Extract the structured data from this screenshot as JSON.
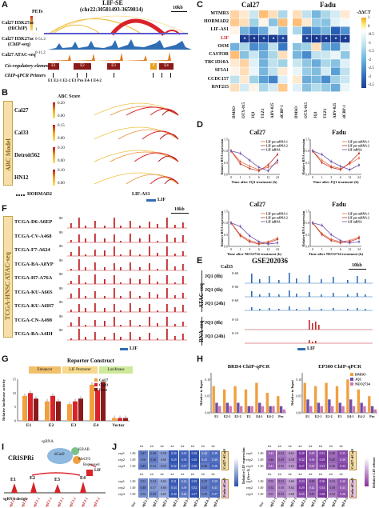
{
  "panels": {
    "A": "A",
    "B": "B",
    "C": "C",
    "D": "D",
    "E": "E",
    "F": "F",
    "G": "G",
    "H": "H",
    "I": "I",
    "J": "J"
  },
  "A": {
    "title": "LIF-SE",
    "coords": "(chr22:30581493-3659814)",
    "scale": "10kb",
    "pets": "PETs",
    "track1": "Cal27 H3K27ac",
    "track1_sub": "(HiChIP)",
    "track1_max": "1",
    "track2": "Cal27 H3K27ac",
    "track2_sub": "(ChIP-seq)",
    "track2_range": "0-51.2",
    "track3": "Cal27 ATAC-seq",
    "track3_range": "0-11.2",
    "cre": "Cis-regulatory elements",
    "primers": "ChIP-qPCR Primers",
    "elements": [
      "E1",
      "E2",
      "E3",
      "P",
      "E4"
    ],
    "primer_labels": "E1  E2-1 E2-2    E3    Pro E4-1 E4-2"
  },
  "B": {
    "side": "ABC Model",
    "score": "ABC Score",
    "rows": [
      {
        "name": "Cal27",
        "hi": "0.20",
        "lo": "0.00"
      },
      {
        "name": "Cal33",
        "hi": "0.15",
        "lo": "0.00"
      },
      {
        "name": "Detroit562",
        "hi": "0.10",
        "lo": "0.00"
      },
      {
        "name": "HN12",
        "hi": "0.10",
        "lo": "0.00"
      }
    ],
    "gene1": "HORMAD2",
    "gene2": "LIF-AS1",
    "gene3": "LIF"
  },
  "C": {
    "title1": "Cal27",
    "title2": "Fadu",
    "legend_title": "-ΔΔCT",
    "legend_ticks": [
      "1",
      "0",
      "-0.5",
      "-1",
      "-1.5",
      "-2",
      "-2.5",
      "-3",
      "-3.5"
    ],
    "genes": [
      "MTMR3",
      "HORMAD2",
      "LIF-AS1",
      "LIF",
      "OSM",
      "CASTOR",
      "TBC1D10A",
      "SF3A1",
      "CCDC157",
      "RNF215"
    ],
    "conditions": [
      "DMSO",
      "OTX-015",
      "JQ1",
      "TEZ1",
      "ABV-025",
      "dCBP-1"
    ],
    "cal27": [
      [
        0.4,
        0.2,
        -0.5,
        0.6,
        0.3,
        -0.8
      ],
      [
        0.5,
        0.3,
        -0.9,
        0.1,
        -1.2,
        0.6
      ],
      [
        0.1,
        -1.5,
        -2.2,
        -1.6,
        -0.3,
        -1.1
      ],
      [
        0,
        -3.5,
        -3.6,
        -3.4,
        -3.5,
        -3.3
      ],
      [
        -1.5,
        -0.8,
        -2.1,
        -1.9,
        -0.6,
        -2.4
      ],
      [
        0.6,
        -1.2,
        -0.5,
        -1.6,
        -0.8,
        0.3
      ],
      [
        0.2,
        0.4,
        -0.3,
        -1.5,
        -0.6,
        -0.9
      ],
      [
        0.1,
        0.3,
        -0.2,
        -1.4,
        -0.6,
        0.2
      ],
      [
        -0.6,
        0.2,
        -0.9,
        -1.8,
        -2.2,
        -0.3
      ],
      [
        0.3,
        -0.4,
        0.1,
        -0.8,
        -0.4,
        0.5
      ]
    ],
    "fadu": [
      [
        0.3,
        -0.6,
        -1.4,
        -0.8,
        -0.4,
        0.2
      ],
      [
        0.6,
        0.2,
        -1.0,
        -1.2,
        -0.3,
        -0.1
      ],
      [
        -0.8,
        -2.4,
        -1.9,
        -1.4,
        -2.8,
        -2.0
      ],
      [
        0,
        -3.4,
        -3.6,
        -3.5,
        -3.4,
        -3.5
      ],
      [
        -1.2,
        -0.9,
        0.3,
        -1.6,
        -2.0,
        -0.4
      ],
      [
        -1.4,
        -2.1,
        -0.6,
        -0.5,
        -0.2,
        -1.1
      ],
      [
        -0.5,
        -1.1,
        -1.6,
        -0.8,
        -1.2,
        -0.3
      ],
      [
        -0.2,
        -1.0,
        -1.3,
        -0.4,
        -1.8,
        -0.6
      ],
      [
        0.2,
        -1.6,
        -1.4,
        -2.1,
        -0.9,
        -0.5
      ],
      [
        -0.3,
        -1.2,
        -0.7,
        -1.0,
        -1.6,
        -0.2
      ]
    ],
    "star": "*"
  },
  "D": {
    "charts": [
      {
        "title": "Cal27",
        "xlabel": "Time after JQ1 treatment (h)",
        "ylabel": "Relative RNA expression"
      },
      {
        "title": "Fadu",
        "xlabel": "Time after JQ1 treatment (h)",
        "ylabel": "Relative RNA expression"
      },
      {
        "title": "Cal27",
        "xlabel": "Time after NEO2734 treatment (h)",
        "ylabel": "Relative RNA expression"
      },
      {
        "title": "Fadu",
        "xlabel": "Time after NEO2734 treatment (h)",
        "ylabel": "Relative RNA expression"
      }
    ],
    "legend": [
      "LIF pre-mRNA-1",
      "LIF pre-mRNA-2",
      "LIF mRNA"
    ],
    "x_ticks": [
      "0",
      "1",
      "3",
      "6",
      "12",
      "24"
    ],
    "y_ticks": [
      "0.0",
      "0.5",
      "1.0",
      "1.5"
    ],
    "y_ticks2": [
      "0.0",
      "0.5",
      "1.0"
    ]
  },
  "E": {
    "cell": "Cal33",
    "gse": "GSE202036",
    "scale": "10kb",
    "atac": "ATAC-seq",
    "rna": "RNA-seq",
    "atac_tracks": [
      {
        "label": "JQ1 (0h)",
        "range": "0-60"
      },
      {
        "label": "JQ1 (6h)",
        "range": "0-60"
      },
      {
        "label": "JQ1 (24h)",
        "range": "0-60"
      }
    ],
    "rna_tracks": [
      {
        "label": "JQ1 (0h)",
        "range": "0-10"
      },
      {
        "label": "JQ1 (24h)",
        "range": "0-10"
      }
    ],
    "gene": "LIF"
  },
  "F": {
    "side": "TCGA-HNSC ATAC-seq",
    "scale": "10kb",
    "samples": [
      "TCGA-D6-A6EP",
      "TCGA-CV-A468",
      "TCGA-F7-A624",
      "TCGA-BA-A8YP",
      "TCGA-H7-A76A",
      "TCGA-KU-A66S",
      "TCGA-KU-A6H7",
      "TCGA-CN-A498",
      "TCGA-BA-A4IH"
    ],
    "ymax": "80",
    "gene": "LIF"
  },
  "G": {
    "title": "Reporter Construct",
    "construct": [
      "Enhancer",
      "LIF Promoter",
      "Luciferase"
    ],
    "ylabel": "Relative luciferase activity",
    "legend": [
      "Cal27",
      "Cal33",
      "Fadu"
    ],
    "categories": [
      "E1",
      "E2",
      "E3",
      "E4",
      "Vector"
    ],
    "y_ticks": [
      "0",
      "5",
      "10",
      "15"
    ]
  },
  "H": {
    "title1": "BRD4 ChIP-qPCR",
    "title2": "EP300 ChIP-qPCR",
    "ylabel": "Relative to Input",
    "categories": [
      "E1",
      "E2-1",
      "E2-2",
      "E3",
      "E4-1",
      "E4-2",
      "Pro"
    ],
    "legend": [
      "DMSO",
      "JQ1",
      "NEO2734"
    ],
    "y_ticks": [
      "0.00",
      "0.05",
      "0.10"
    ]
  },
  "I": {
    "title": "CRISPRi",
    "labels": [
      "sgRNA",
      "dCas9",
      "KRAB",
      "MeCP2",
      "Repressed",
      "LIF"
    ],
    "sites": [
      "E1",
      "E2",
      "E3",
      "E4"
    ],
    "design": "sgRNA design",
    "guides": [
      "sgE1-1",
      "sgE1-2",
      "sgE2-1",
      "sgE2-2",
      "sgE3-1",
      "sgE3-2",
      "sgE4-1",
      "sgE4-2"
    ]
  },
  "J": {
    "cells": [
      "Cal27-dCas9",
      "Fadu-dCas9"
    ],
    "cells2": [
      "Cal27-dCas9",
      "Fadu-dCas9"
    ],
    "rows": [
      "rep1",
      "rep2",
      "rep3"
    ],
    "cols": [
      "Scr",
      "sgE1-1",
      "sgE1-2",
      "sgE2-1",
      "sgE2-2",
      "sgE3-1",
      "sgE3-2",
      "sgE4-1",
      "sgE4-2"
    ],
    "legend_left": "Relative LIF expression",
    "legend_left_sub": "(Scr=1)",
    "legend_right": "Relative LIF release",
    "sig": "**",
    "blue_cal27": [
      [
        "1.00",
        "0.47",
        "0.49",
        "0.58",
        "0.30",
        "0.35",
        "0.28",
        "0.44",
        "0.38"
      ],
      [
        "1.00",
        "0.50",
        "0.46",
        "0.60",
        "0.29",
        "0.33",
        "0.26",
        "0.41",
        "0.40"
      ],
      [
        "1.00",
        "0.45",
        "0.52",
        "0.55",
        "0.32",
        "0.37",
        "0.30",
        "0.46",
        "0.36"
      ]
    ],
    "blue_fadu": [
      [
        "1.00",
        "0.51",
        "0.54",
        "0.63",
        "0.31",
        "0.42",
        "0.29",
        "0.47",
        "0.39"
      ],
      [
        "1.00",
        "0.48",
        "0.57",
        "0.60",
        "0.34",
        "0.39",
        "0.32",
        "0.45",
        "0.41"
      ],
      [
        "1.00",
        "0.53",
        "0.50",
        "0.65",
        "0.30",
        "0.44",
        "0.27",
        "0.49",
        "0.37"
      ]
    ],
    "purple_cal27": [
      [
        "1.00",
        "0.43",
        "0.52",
        "0.61",
        "0.28",
        "0.39",
        "0.31",
        "0.48",
        "0.35"
      ],
      [
        "1.00",
        "0.46",
        "0.49",
        "0.58",
        "0.32",
        "0.36",
        "0.29",
        "0.45",
        "0.38"
      ],
      [
        "1.00",
        "0.41",
        "0.55",
        "0.63",
        "0.27",
        "0.41",
        "0.33",
        "0.50",
        "0.33"
      ]
    ],
    "purple_fadu": [
      [
        "1.00",
        "0.55",
        "0.51",
        "0.66",
        "0.33",
        "0.45",
        "0.30",
        "0.52",
        "0.40"
      ],
      [
        "1.00",
        "0.52",
        "0.58",
        "0.62",
        "0.29",
        "0.42",
        "0.34",
        "0.49",
        "0.43"
      ],
      [
        "1.00",
        "0.57",
        "0.53",
        "0.68",
        "0.35",
        "0.47",
        "0.28",
        "0.54",
        "0.38"
      ]
    ]
  },
  "chart_data": [
    {
      "type": "heatmap",
      "title": "Cal27",
      "categories": [
        "DMSO",
        "OTX-015",
        "JQ1",
        "TEZ1",
        "ABV-025",
        "dCBP-1"
      ],
      "rows": [
        "MTMR3",
        "HORMAD2",
        "LIF-AS1",
        "LIF",
        "OSM",
        "CASTOR",
        "TBC1D10A",
        "SF3A1",
        "CCDC157",
        "RNF215"
      ]
    },
    {
      "type": "line",
      "title": "Cal27",
      "xlabel": "Time after JQ1 treatment (h)",
      "ylabel": "Relative RNA expression",
      "x": [
        0,
        1,
        3,
        6,
        12,
        24
      ],
      "series": [
        {
          "name": "LIF pre-mRNA-1",
          "values": [
            1.0,
            0.55,
            0.35,
            0.2,
            0.3,
            0.5
          ]
        },
        {
          "name": "LIF pre-mRNA-2",
          "values": [
            1.0,
            0.45,
            0.25,
            0.15,
            0.4,
            0.85
          ]
        },
        {
          "name": "LIF mRNA",
          "values": [
            1.0,
            0.9,
            0.6,
            0.3,
            0.15,
            0.6
          ]
        }
      ]
    },
    {
      "type": "line",
      "title": "Fadu",
      "xlabel": "Time after JQ1 treatment (h)",
      "ylabel": "Relative RNA expression",
      "x": [
        0,
        1,
        3,
        6,
        12,
        24
      ],
      "series": [
        {
          "name": "LIF pre-mRNA-1",
          "values": [
            1.0,
            0.6,
            0.35,
            0.25,
            0.45,
            0.7
          ]
        },
        {
          "name": "LIF pre-mRNA-2",
          "values": [
            1.0,
            0.5,
            0.3,
            0.2,
            0.5,
            0.9
          ]
        },
        {
          "name": "LIF mRNA",
          "values": [
            1.0,
            0.85,
            0.55,
            0.35,
            0.2,
            0.4
          ]
        }
      ]
    },
    {
      "type": "line",
      "title": "Cal27",
      "xlabel": "Time after NEO2734 treatment (h)",
      "ylabel": "Relative RNA expression",
      "x": [
        0,
        1,
        3,
        6,
        12,
        24
      ],
      "series": [
        {
          "name": "LIF pre-mRNA-1",
          "values": [
            1.0,
            0.5,
            0.25,
            0.15,
            0.2,
            0.35
          ]
        },
        {
          "name": "LIF pre-mRNA-2",
          "values": [
            1.0,
            0.45,
            0.2,
            0.1,
            0.15,
            0.3
          ]
        },
        {
          "name": "LIF mRNA",
          "values": [
            1.0,
            0.85,
            0.45,
            0.2,
            0.1,
            0.15
          ]
        }
      ]
    },
    {
      "type": "line",
      "title": "Fadu",
      "xlabel": "Time after NEO2734 treatment (h)",
      "ylabel": "Relative RNA expression",
      "x": [
        0,
        1,
        3,
        6,
        12,
        24
      ],
      "series": [
        {
          "name": "LIF pre-mRNA-1",
          "values": [
            1.0,
            0.55,
            0.3,
            0.2,
            0.25,
            0.4
          ]
        },
        {
          "name": "LIF pre-mRNA-2",
          "values": [
            1.0,
            0.5,
            0.25,
            0.15,
            0.2,
            0.35
          ]
        },
        {
          "name": "LIF mRNA",
          "values": [
            1.0,
            0.9,
            0.5,
            0.25,
            0.15,
            0.2
          ]
        }
      ]
    },
    {
      "type": "bar",
      "ylabel": "Relative luciferase activity",
      "categories": [
        "E1",
        "E2",
        "E3",
        "E4",
        "Vector"
      ],
      "series": [
        {
          "name": "Cal27",
          "values": [
            9,
            7,
            6,
            13,
            1
          ]
        },
        {
          "name": "Cal33",
          "values": [
            10,
            9,
            7,
            11,
            1
          ]
        },
        {
          "name": "Fadu",
          "values": [
            8,
            7,
            8,
            14,
            1
          ]
        }
      ],
      "ylim": [
        0,
        15
      ]
    },
    {
      "type": "bar",
      "title": "BRD4 ChIP-qPCR",
      "ylabel": "Relative to Input",
      "categories": [
        "E1",
        "E2-1",
        "E2-2",
        "E3",
        "E4-1",
        "E4-2",
        "Pro"
      ],
      "series": [
        {
          "name": "DMSO",
          "values": [
            0.08,
            0.07,
            0.08,
            0.07,
            0.09,
            0.06,
            0.05
          ]
        },
        {
          "name": "JQ1",
          "values": [
            0.03,
            0.03,
            0.03,
            0.02,
            0.03,
            0.02,
            0.02
          ]
        },
        {
          "name": "NEO2734",
          "values": [
            0.02,
            0.02,
            0.02,
            0.02,
            0.02,
            0.02,
            0.01
          ]
        }
      ],
      "ylim": [
        0,
        0.12
      ]
    },
    {
      "type": "bar",
      "title": "EP300 ChIP-qPCR",
      "ylabel": "Relative to Input",
      "categories": [
        "E1",
        "E2-1",
        "E2-2",
        "E3",
        "E4-1",
        "E4-2",
        "Pro"
      ],
      "series": [
        {
          "name": "DMSO",
          "values": [
            0.09,
            0.08,
            0.09,
            0.08,
            0.1,
            0.07,
            0.05
          ]
        },
        {
          "name": "JQ1",
          "values": [
            0.04,
            0.03,
            0.04,
            0.03,
            0.04,
            0.03,
            0.02
          ]
        },
        {
          "name": "NEO2734",
          "values": [
            0.02,
            0.02,
            0.02,
            0.02,
            0.02,
            0.02,
            0.01
          ]
        }
      ],
      "ylim": [
        0,
        0.12
      ]
    }
  ]
}
